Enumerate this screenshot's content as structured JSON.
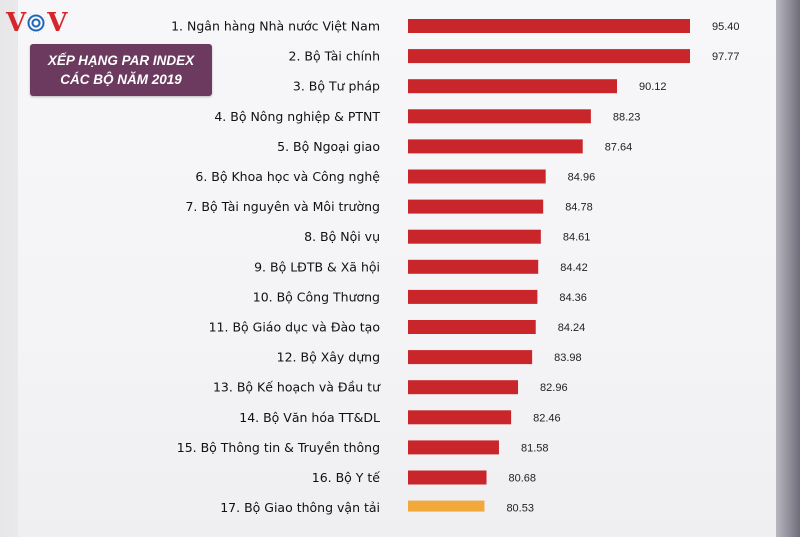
{
  "logo": {
    "left": "V",
    "right": "V"
  },
  "banner": {
    "line1": "XẾP HẠNG PAR INDEX",
    "line2": "CÁC BỘ NĂM 2019"
  },
  "colors": {
    "bar": "#c9262c",
    "highlight": "#f2a93b",
    "banner": "#6b3a5e"
  },
  "chart_data": {
    "type": "bar",
    "orientation": "horizontal",
    "title": "XẾP HẠNG PAR INDEX CÁC BỘ NĂM 2019",
    "categories": [
      "1. Ngân hàng Nhà nước Việt Nam",
      "2. Bộ Tài chính",
      "3. Bộ Tư pháp",
      "4. Bộ Nông nghiệp & PTNT",
      "5. Bộ Ngoại giao",
      "6. Bộ Khoa học và Công nghệ",
      "7. Bộ Tài nguyên và Môi trường",
      "8. Bộ Nội vụ",
      "9. Bộ LĐTB & Xã hội",
      "10. Bộ Công Thương",
      "11. Bộ Giáo dục và Đào tạo",
      "12. Bộ Xây dựng",
      "13. Bộ Kế hoạch và Đầu tư",
      "14. Bộ Văn hóa TT&DL",
      "15. Bộ Thông tin & Truyền thông",
      "16. Bộ Y tế",
      "17. Bộ Giao thông vận tải"
    ],
    "values": [
      95.4,
      97.77,
      90.12,
      88.23,
      87.64,
      84.96,
      84.78,
      84.61,
      84.42,
      84.36,
      84.24,
      83.98,
      82.96,
      82.46,
      81.58,
      80.68,
      80.53
    ],
    "value_labels": [
      "95.40",
      "97.77",
      "90.12",
      "88.23",
      "87.64",
      "84.96",
      "84.78",
      "84.61",
      "84.42",
      "84.36",
      "84.24",
      "83.98",
      "82.96",
      "82.46",
      "81.58",
      "80.68",
      "80.53"
    ],
    "highlighted_category": "17. Bộ Giao thông vận tải",
    "grid": false,
    "legend": "none"
  }
}
